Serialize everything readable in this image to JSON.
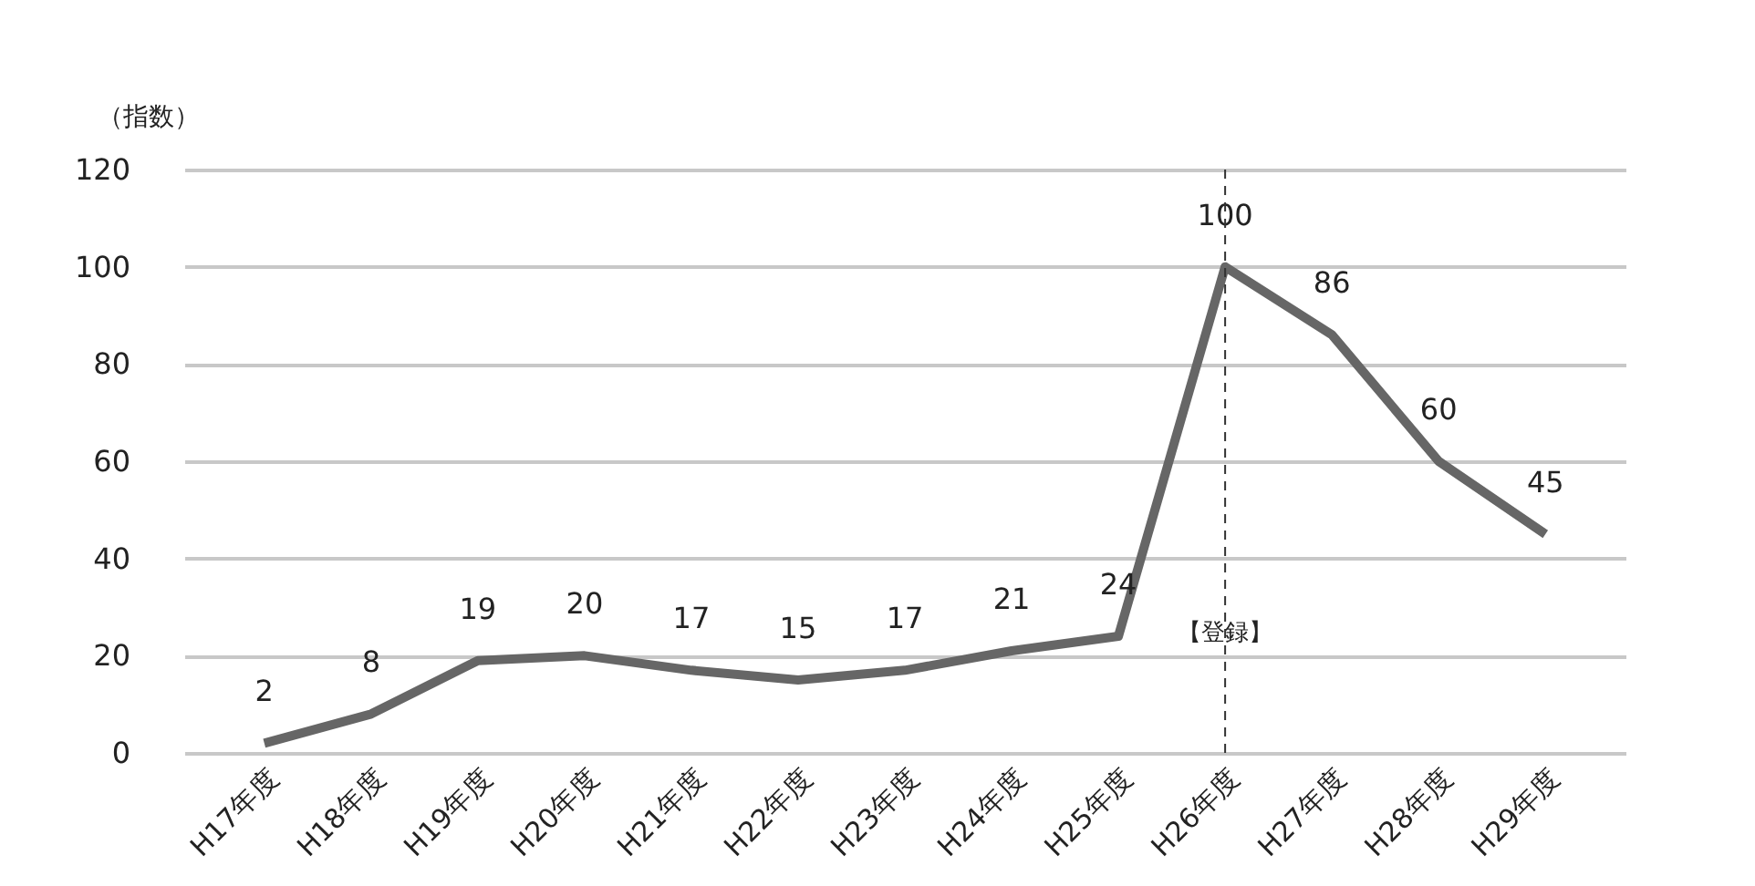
{
  "chart_data": {
    "type": "line",
    "ylabel": "（指数）",
    "categories": [
      "H17年度",
      "H18年度",
      "H19年度",
      "H20年度",
      "H21年度",
      "H22年度",
      "H23年度",
      "H24年度",
      "H25年度",
      "H26年度",
      "H27年度",
      "H28年度",
      "H29年度"
    ],
    "series": [
      {
        "color": "#666666",
        "values": [
          2,
          8,
          19,
          20,
          17,
          15,
          17,
          21,
          24,
          100,
          86,
          60,
          45
        ]
      }
    ],
    "ylim": [
      0,
      120
    ],
    "yticks": [
      0,
      20,
      40,
      60,
      80,
      100,
      120
    ],
    "grid": "y",
    "marker": "none",
    "line_style": "solid",
    "data_labels": true,
    "ref_lines": [
      {
        "axis": "x",
        "value": "H26年度",
        "label": "【登録】",
        "color": "#333333",
        "line_style": "dashed"
      }
    ]
  }
}
